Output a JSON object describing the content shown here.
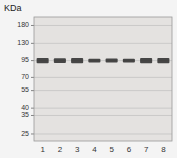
{
  "chart_data": {
    "type": "blot",
    "title": "KDa",
    "categories": [
      "1",
      "2",
      "3",
      "4",
      "5",
      "6",
      "7",
      "8"
    ],
    "values": [
      95,
      95,
      95,
      95,
      95,
      95,
      95,
      95
    ],
    "band_heights": [
      0.04,
      0.036,
      0.04,
      0.03,
      0.032,
      0.03,
      0.04,
      0.04
    ],
    "color": "#2a2a2a",
    "log": "y",
    "ylim": [
      22,
      210
    ],
    "yticks": [
      180,
      130,
      95,
      70,
      55,
      40,
      35,
      25
    ],
    "grid": true
  }
}
